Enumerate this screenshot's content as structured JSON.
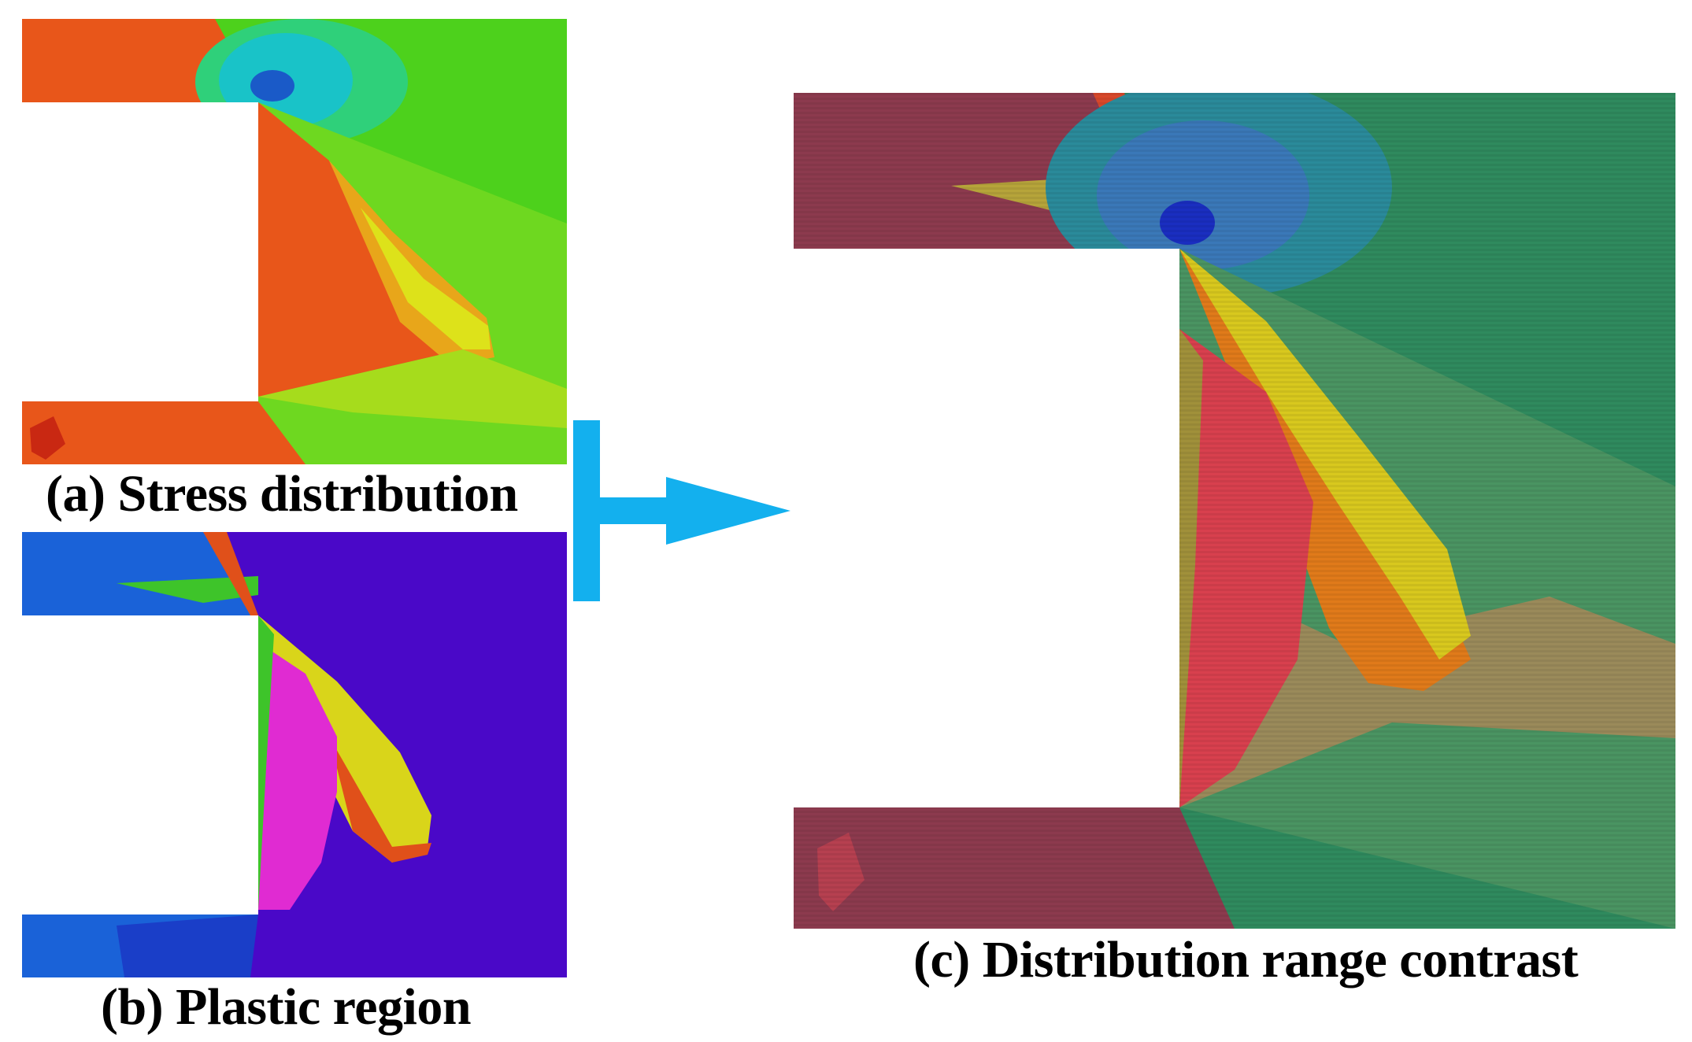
{
  "captions": {
    "a": "(a) Stress distribution",
    "b": "(b) Plastic region",
    "c": "(c) Distribution range contrast"
  },
  "colors": {
    "stress_red": "#e8561a",
    "stress_green": "#4dd11c",
    "stress_yellow": "#dde21a",
    "stress_cyan": "#19c3c8",
    "stress_blue": "#1a5ac8",
    "plastic_purple": "#4a08c8",
    "plastic_blue": "#1a62d8",
    "plastic_yellow": "#d9d51a",
    "plastic_magenta": "#e02bd2",
    "plastic_orange": "#e0501a",
    "plastic_green": "#3ec42a",
    "overlay_teal": "#2f8a5e",
    "overlay_maroon": "#8c3a4e",
    "arrow_blue": "#13b0ee"
  },
  "icons": [
    "bracket-arrow-icon"
  ]
}
